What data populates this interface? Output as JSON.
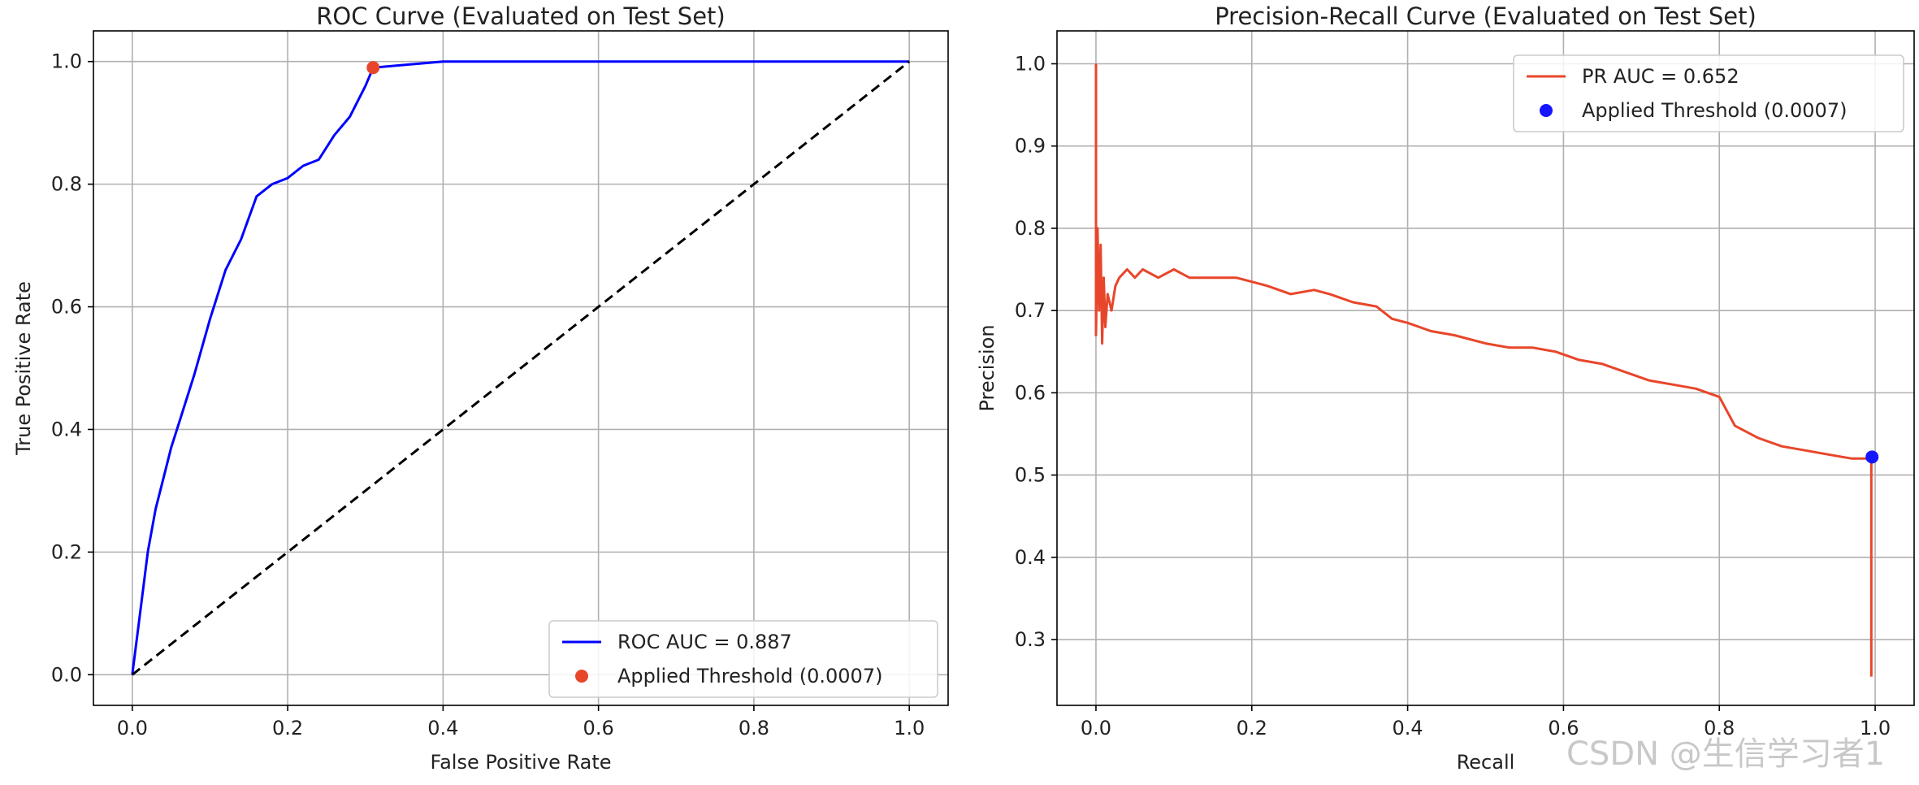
{
  "chart_data": [
    {
      "type": "line",
      "title": "ROC Curve (Evaluated on Test Set)",
      "xlabel": "False Positive Rate",
      "ylabel": "True Positive Rate",
      "xlim": [
        -0.05,
        1.05
      ],
      "ylim": [
        -0.05,
        1.05
      ],
      "xticks": [
        0.0,
        0.2,
        0.4,
        0.6,
        0.8,
        1.0
      ],
      "yticks": [
        0.0,
        0.2,
        0.4,
        0.6,
        0.8,
        1.0
      ],
      "tick_labels": [
        "0.0",
        "0.2",
        "0.4",
        "0.6",
        "0.8",
        "1.0"
      ],
      "grid": true,
      "legend_position": "lower right",
      "series": [
        {
          "name": "ROC AUC = 0.887",
          "color": "#0000ff",
          "x": [
            0.0,
            0.01,
            0.02,
            0.03,
            0.04,
            0.05,
            0.06,
            0.08,
            0.1,
            0.12,
            0.14,
            0.16,
            0.18,
            0.2,
            0.22,
            0.24,
            0.26,
            0.28,
            0.3,
            0.31,
            0.4,
            0.5,
            0.6,
            0.7,
            0.8,
            0.9,
            1.0
          ],
          "y": [
            0.0,
            0.1,
            0.2,
            0.27,
            0.32,
            0.37,
            0.41,
            0.49,
            0.58,
            0.66,
            0.71,
            0.78,
            0.8,
            0.81,
            0.83,
            0.84,
            0.88,
            0.91,
            0.96,
            0.99,
            1.0,
            1.0,
            1.0,
            1.0,
            1.0,
            1.0,
            1.0
          ]
        },
        {
          "name": "",
          "color": "#000000",
          "style": "dashed",
          "x": [
            0.0,
            1.0
          ],
          "y": [
            0.0,
            1.0
          ]
        }
      ],
      "points": [
        {
          "name": "Applied Threshold (0.0007)",
          "color": "#e8462a",
          "x": 0.31,
          "y": 0.99
        }
      ]
    },
    {
      "type": "line",
      "title": "Precision-Recall Curve (Evaluated on Test Set)",
      "xlabel": "Recall",
      "ylabel": "Precision",
      "xlim": [
        -0.05,
        1.05
      ],
      "ylim": [
        0.22,
        1.04
      ],
      "xticks": [
        0.0,
        0.2,
        0.4,
        0.6,
        0.8,
        1.0
      ],
      "yticks": [
        0.3,
        0.4,
        0.5,
        0.6,
        0.7,
        0.8,
        0.9,
        1.0
      ],
      "xtick_labels": [
        "0.0",
        "0.2",
        "0.4",
        "0.6",
        "0.8",
        "1.0"
      ],
      "ytick_labels": [
        "0.3",
        "0.4",
        "0.5",
        "0.6",
        "0.7",
        "0.8",
        "0.9",
        "1.0"
      ],
      "grid": true,
      "legend_position": "upper right",
      "series": [
        {
          "name": "PR AUC = 0.652",
          "color": "#e8462a",
          "x": [
            0.0,
            0.0,
            0.002,
            0.004,
            0.006,
            0.008,
            0.01,
            0.012,
            0.015,
            0.02,
            0.025,
            0.03,
            0.04,
            0.05,
            0.06,
            0.08,
            0.1,
            0.12,
            0.15,
            0.18,
            0.2,
            0.22,
            0.25,
            0.28,
            0.3,
            0.33,
            0.36,
            0.38,
            0.4,
            0.43,
            0.46,
            0.5,
            0.53,
            0.56,
            0.59,
            0.62,
            0.65,
            0.68,
            0.71,
            0.74,
            0.77,
            0.8,
            0.82,
            0.85,
            0.88,
            0.91,
            0.94,
            0.97,
            0.995,
            0.995
          ],
          "y": [
            1.0,
            0.67,
            0.8,
            0.7,
            0.78,
            0.66,
            0.74,
            0.68,
            0.72,
            0.7,
            0.73,
            0.74,
            0.75,
            0.74,
            0.75,
            0.74,
            0.75,
            0.74,
            0.74,
            0.74,
            0.735,
            0.73,
            0.72,
            0.725,
            0.72,
            0.71,
            0.705,
            0.69,
            0.685,
            0.675,
            0.67,
            0.66,
            0.655,
            0.655,
            0.65,
            0.64,
            0.635,
            0.625,
            0.615,
            0.61,
            0.605,
            0.595,
            0.56,
            0.545,
            0.535,
            0.53,
            0.525,
            0.52,
            0.52,
            0.255
          ]
        }
      ],
      "points": [
        {
          "name": "Applied Threshold (0.0007)",
          "color": "#1515ff",
          "x": 0.996,
          "y": 0.522
        }
      ]
    }
  ],
  "watermark": "CSDN @生信学习者1"
}
